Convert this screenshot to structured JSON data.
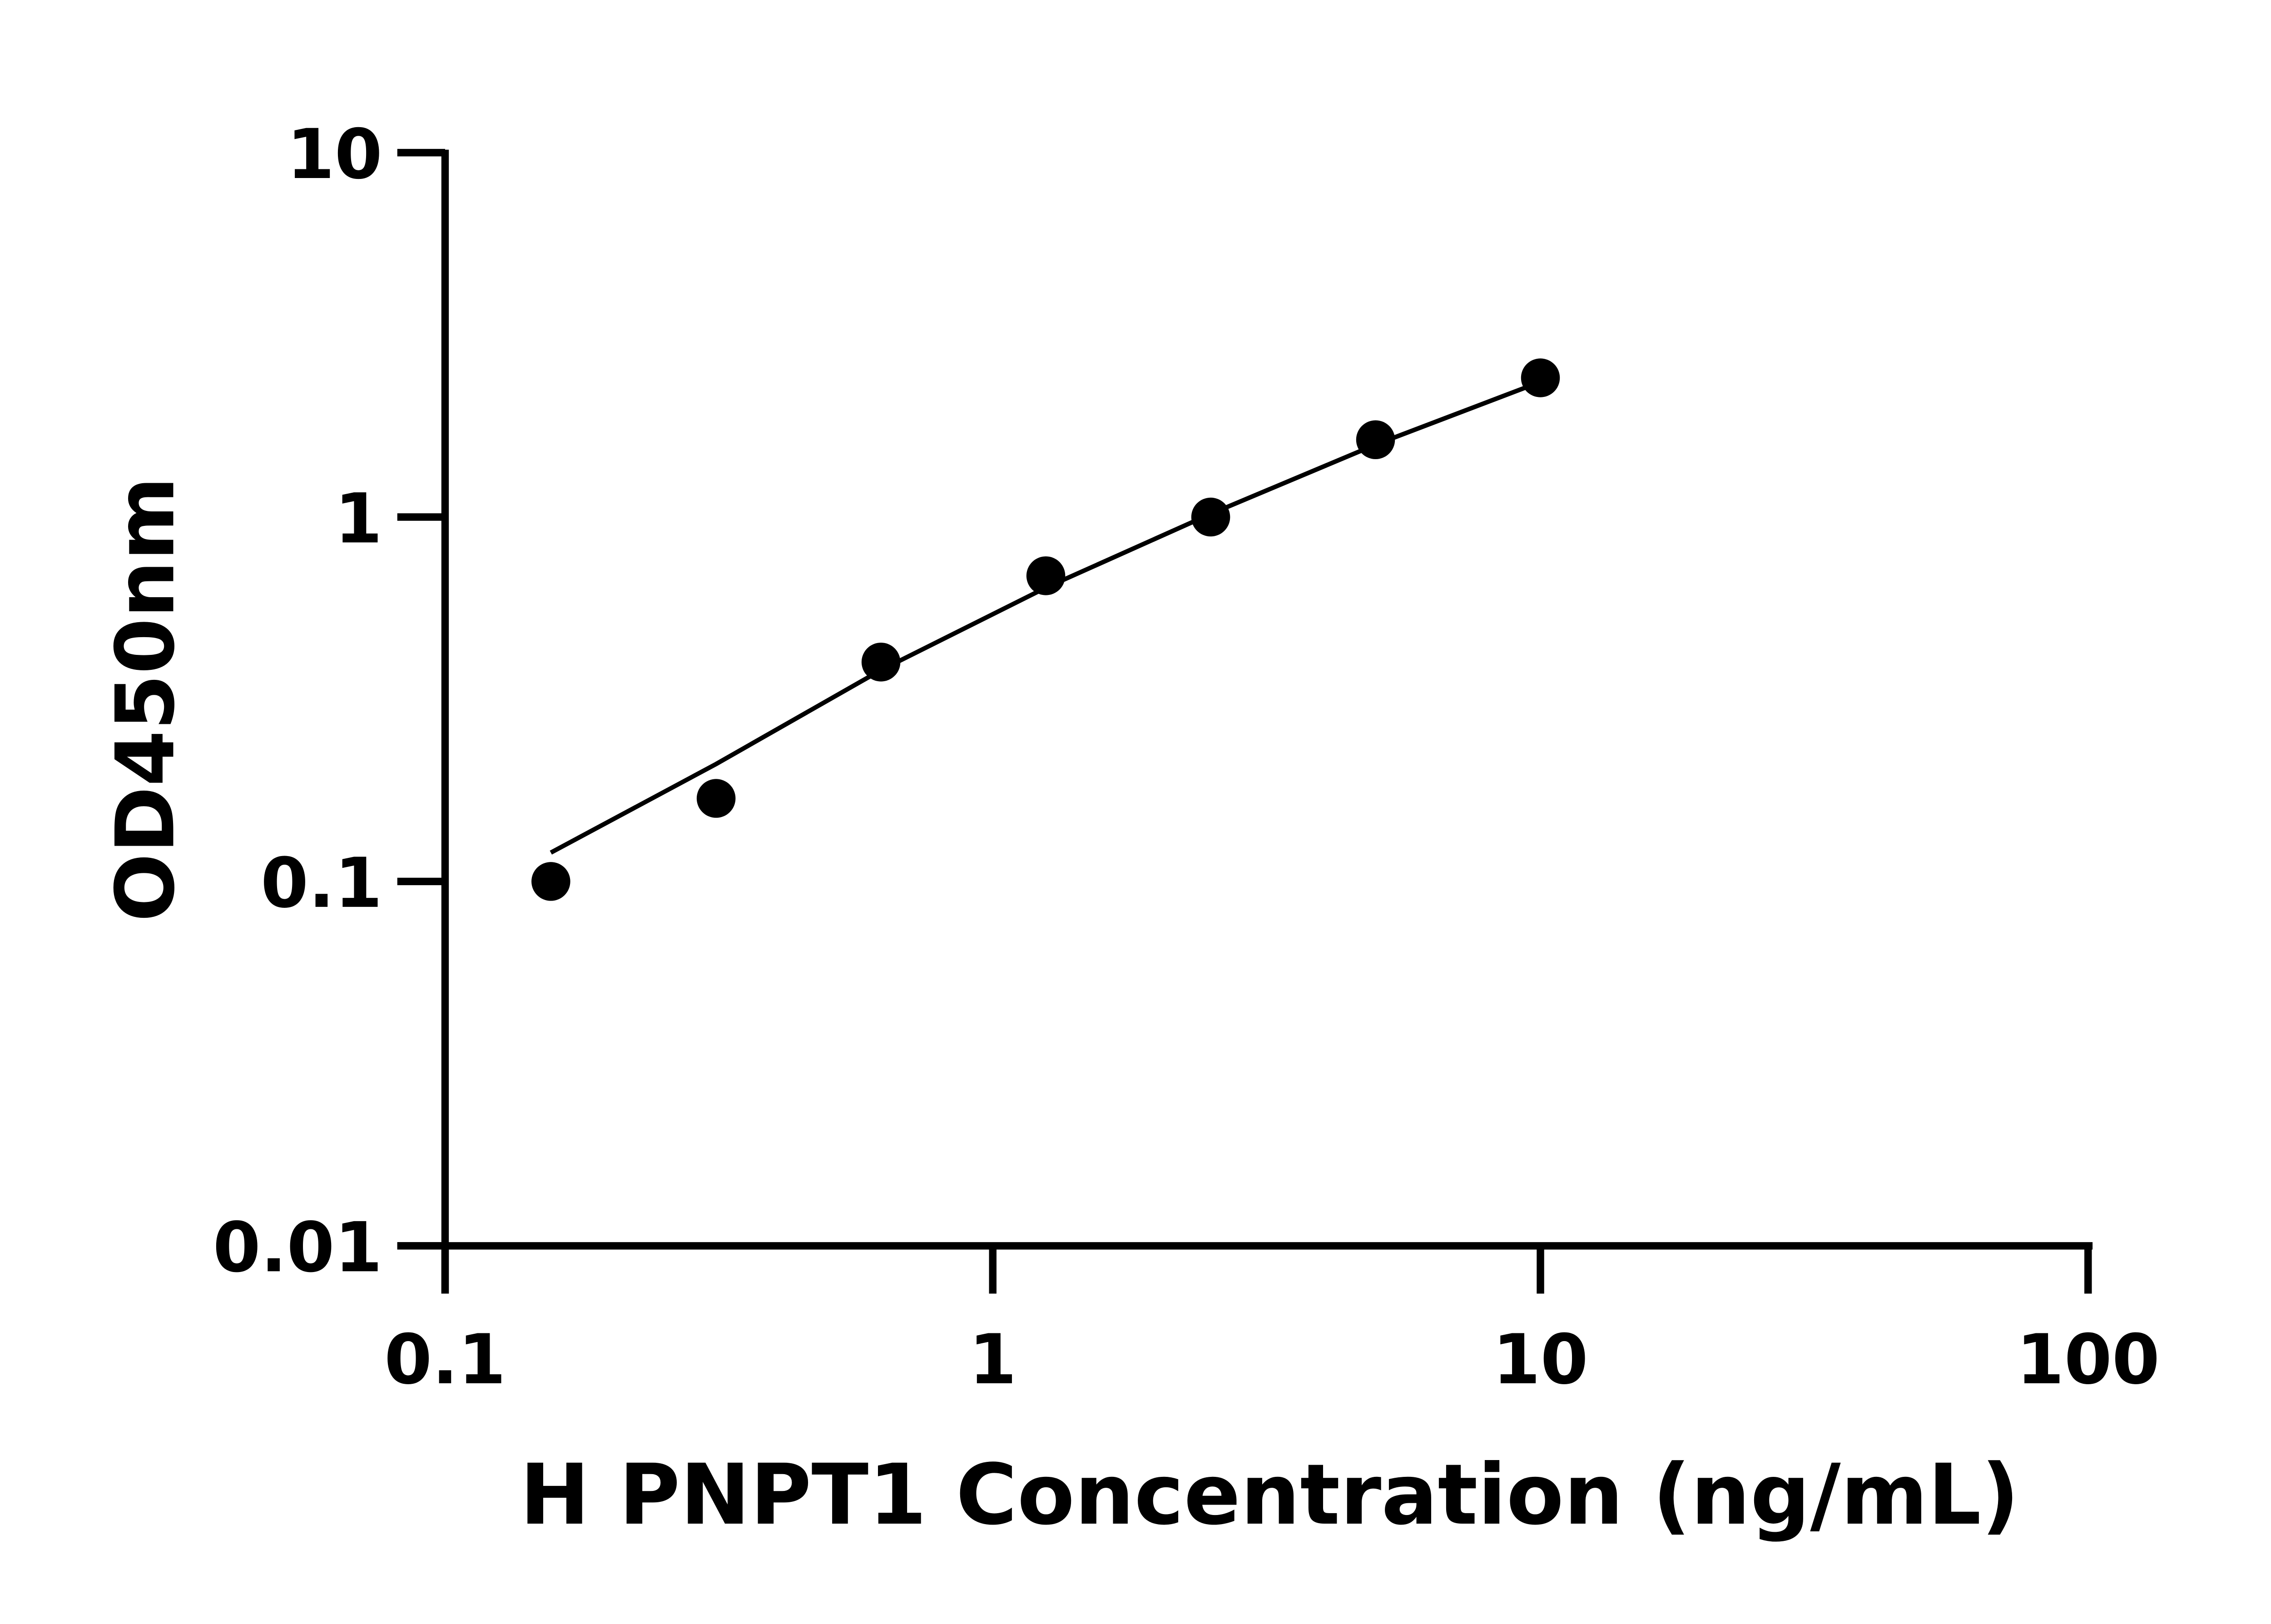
{
  "chart_data": {
    "type": "scatter",
    "title": "",
    "xlabel": "H PNPT1 Concentration (ng/mL)",
    "ylabel": "OD450nm",
    "x_scale": "log",
    "y_scale": "log",
    "xlim": [
      0.1,
      100
    ],
    "ylim": [
      0.01,
      10
    ],
    "x_ticks": [
      "0.1",
      "1",
      "10",
      "100"
    ],
    "y_ticks": [
      "0.01",
      "0.1",
      "1",
      "10"
    ],
    "grid": false,
    "legend": "none",
    "color": "#000000",
    "series": [
      {
        "x": [
          0.156,
          0.3125,
          0.625,
          1.25,
          2.5,
          5,
          10
        ],
        "y": [
          0.1,
          0.169,
          0.4,
          0.69,
          1.0,
          1.63,
          2.41
        ]
      }
    ],
    "fit_curve": {
      "x": [
        0.156,
        0.3125,
        0.625,
        1.25,
        2.5,
        5,
        10
      ],
      "y": [
        0.12,
        0.21,
        0.38,
        0.64,
        1.02,
        1.58,
        2.35
      ]
    }
  }
}
